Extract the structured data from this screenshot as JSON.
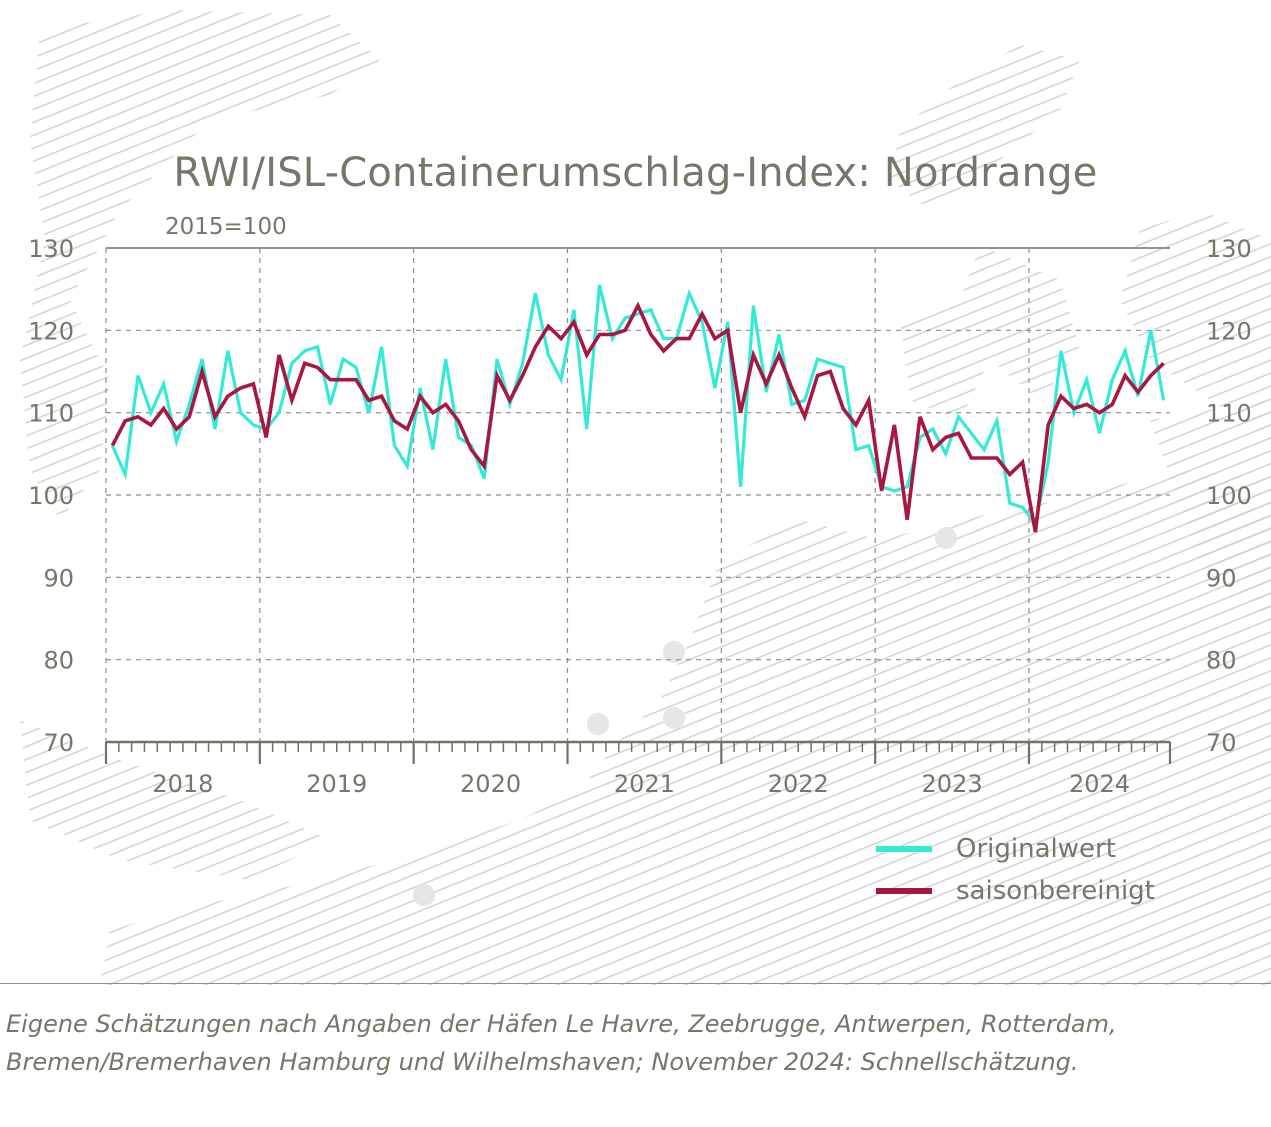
{
  "chart_data": {
    "type": "line",
    "title": "RWI/ISL-Containerumschlag-Index: Nordrange",
    "subtitle": "2015=100",
    "xlabel": "",
    "ylabel": "",
    "ylim": [
      70,
      130
    ],
    "yticks": [
      70,
      80,
      90,
      100,
      110,
      120,
      130
    ],
    "ytick_labels": [
      "70",
      "80",
      "90",
      "100",
      "110",
      "120",
      "130"
    ],
    "year_labels": [
      "2018",
      "2019",
      "2020",
      "2021",
      "2022",
      "2023",
      "2024"
    ],
    "grid": true,
    "legend_position": "bottom-right",
    "x_start": "2018-01",
    "months": 83,
    "series": [
      {
        "name": "Originalwert",
        "color": "#33ead8",
        "values": [
          106.0,
          102.5,
          114.5,
          110.0,
          113.5,
          106.5,
          111.0,
          116.5,
          108.0,
          117.5,
          110.0,
          108.5,
          108.0,
          110.0,
          116.0,
          117.5,
          118.0,
          111.0,
          116.5,
          115.5,
          110.0,
          118.0,
          106.0,
          103.5,
          113.0,
          105.5,
          116.5,
          107.0,
          106.0,
          102.0,
          116.5,
          111.0,
          116.0,
          124.5,
          117.0,
          114.0,
          122.5,
          108.0,
          125.5,
          119.0,
          121.5,
          122.0,
          122.5,
          119.0,
          119.0,
          124.5,
          121.0,
          113.0,
          121.0,
          101.0,
          123.0,
          112.5,
          119.5,
          111.0,
          111.5,
          116.5,
          116.0,
          115.5,
          105.5,
          106.0,
          101.0,
          100.5,
          101.0,
          107.0,
          108.0,
          105.0,
          109.5,
          107.5,
          105.5,
          109.0,
          99.0,
          98.5,
          96.5,
          104.0,
          117.5,
          110.0,
          114.0,
          107.5,
          114.0,
          117.5,
          112.0,
          120.0,
          111.5
        ]
      },
      {
        "name": "saisonbereinigt",
        "color": "#a8173f",
        "values": [
          106.0,
          109.0,
          109.5,
          108.5,
          110.5,
          108.0,
          109.5,
          115.0,
          109.5,
          112.0,
          113.0,
          113.5,
          107.0,
          117.0,
          111.5,
          116.0,
          115.5,
          114.0,
          114.0,
          114.0,
          111.5,
          112.0,
          109.0,
          108.0,
          112.0,
          110.0,
          111.0,
          109.0,
          105.5,
          103.5,
          114.5,
          111.5,
          114.5,
          118.0,
          120.5,
          119.0,
          121.0,
          117.0,
          119.5,
          119.5,
          120.0,
          123.0,
          119.5,
          117.5,
          119.0,
          119.0,
          122.0,
          119.0,
          120.0,
          110.0,
          117.0,
          113.5,
          117.0,
          113.0,
          109.5,
          114.5,
          115.0,
          110.5,
          108.5,
          111.5,
          100.5,
          108.5,
          97.0,
          109.5,
          105.5,
          107.0,
          107.5,
          104.5,
          104.5,
          104.5,
          102.5,
          104.0,
          95.5,
          108.5,
          112.0,
          110.5,
          111.0,
          110.0,
          111.0,
          114.5,
          112.5,
          114.5,
          116.0
        ]
      }
    ]
  },
  "footnote": {
    "line1": "Eigene Schätzungen nach Angaben der Häfen Le Havre, Zeebrugge, Antwerpen, Rotterdam,",
    "line2": "Bremen/Bremerhaven Hamburg und Wilhelmshaven; November 2024: Schnellschätzung."
  }
}
